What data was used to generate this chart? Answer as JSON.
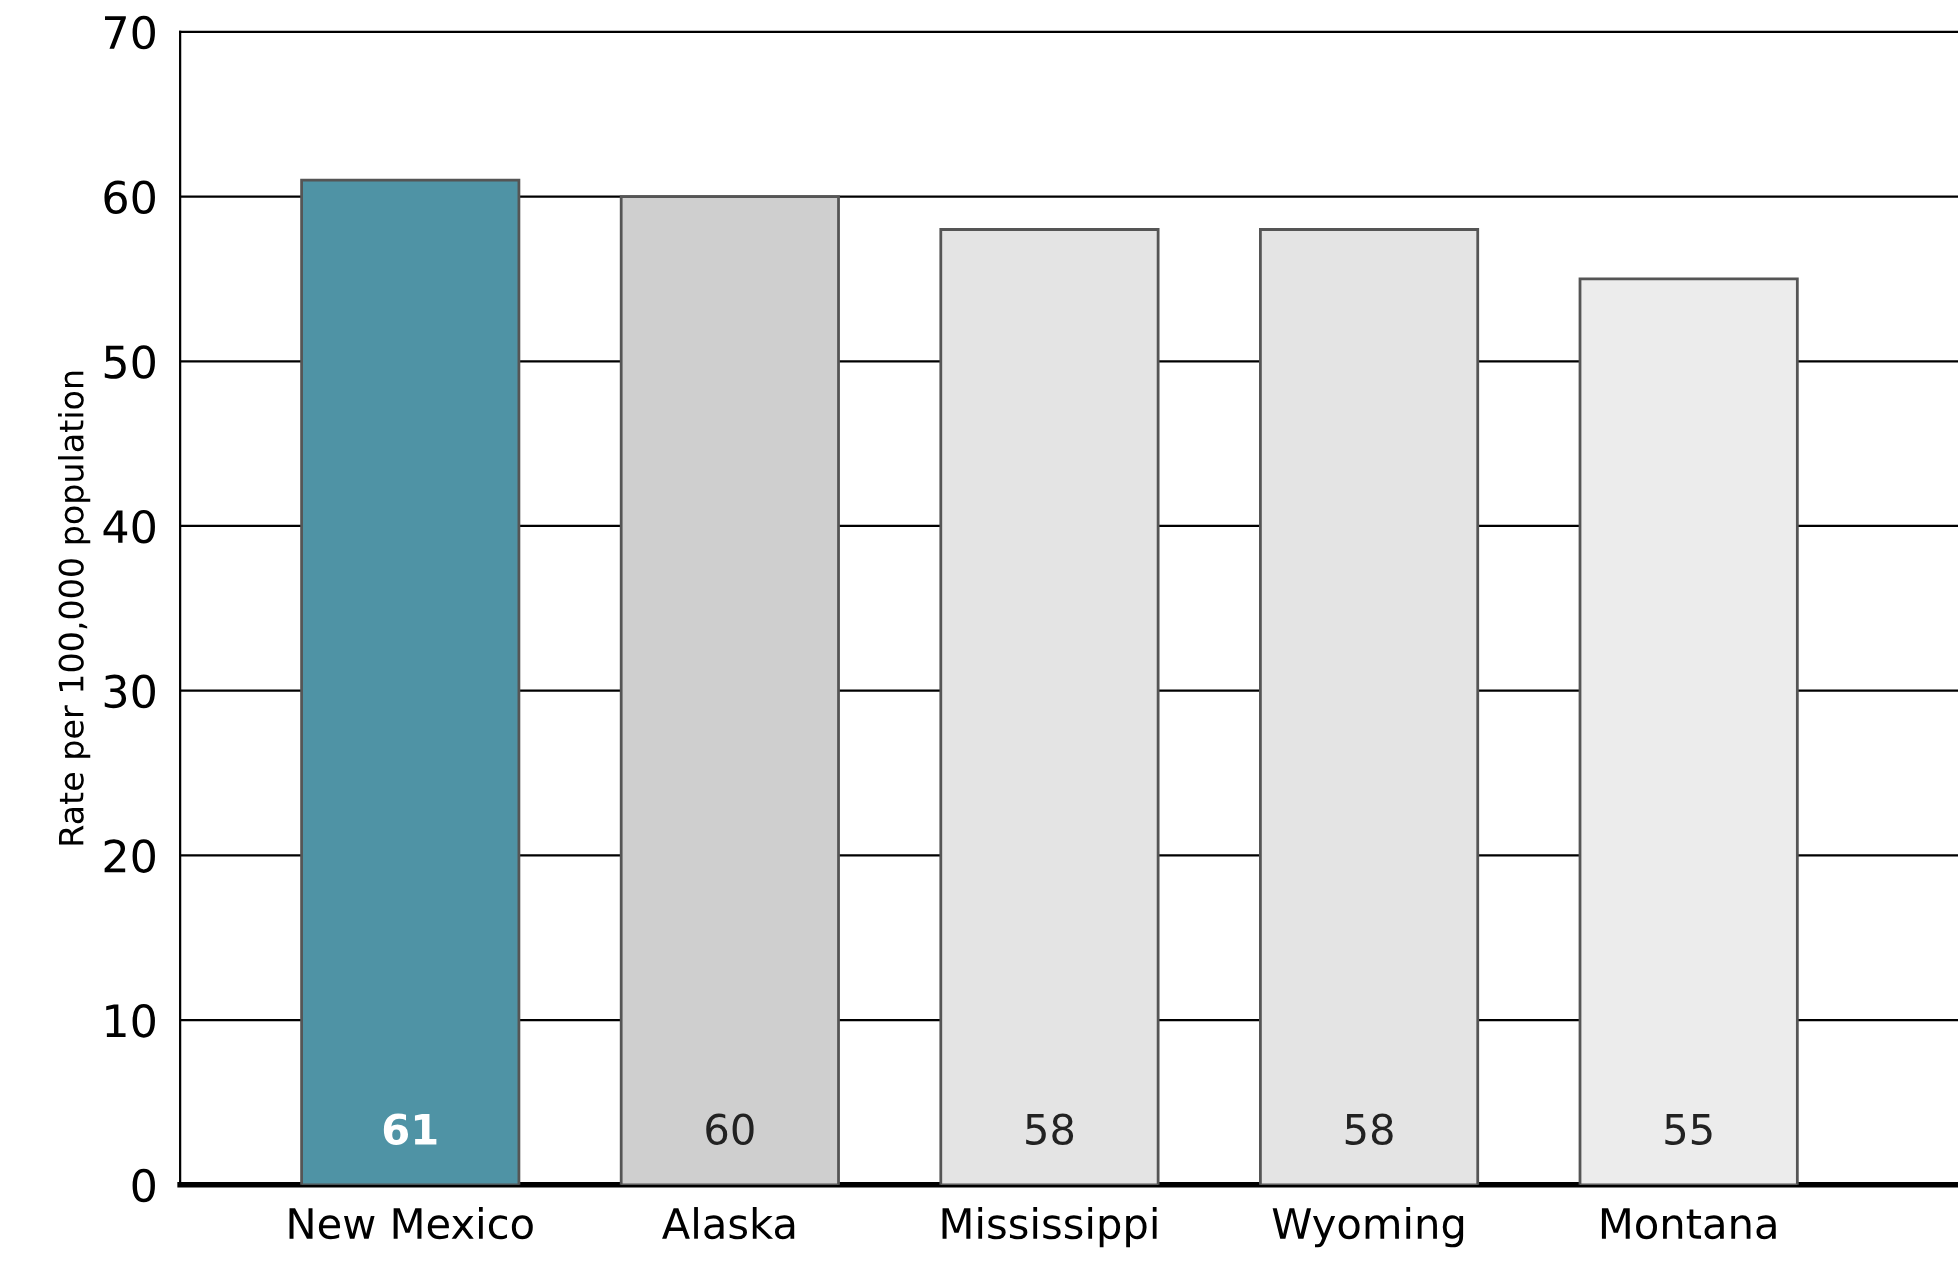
{
  "chart_data": {
    "type": "bar",
    "ylabel": "Rate per 100,000 population",
    "categories": [
      "New Mexico",
      "Alaska",
      "Mississippi",
      "Wyoming",
      "Montana"
    ],
    "values": [
      61,
      60,
      58,
      58,
      55
    ],
    "colors": [
      "#4f93a5",
      "#cfcfcf",
      "#e4e4e4",
      "#e4e4e4",
      "#ececec"
    ],
    "ylim": [
      0,
      70
    ],
    "yticks": [
      0,
      10,
      20,
      30,
      40,
      50,
      60,
      70
    ],
    "grid": "y",
    "data_labels": true
  }
}
